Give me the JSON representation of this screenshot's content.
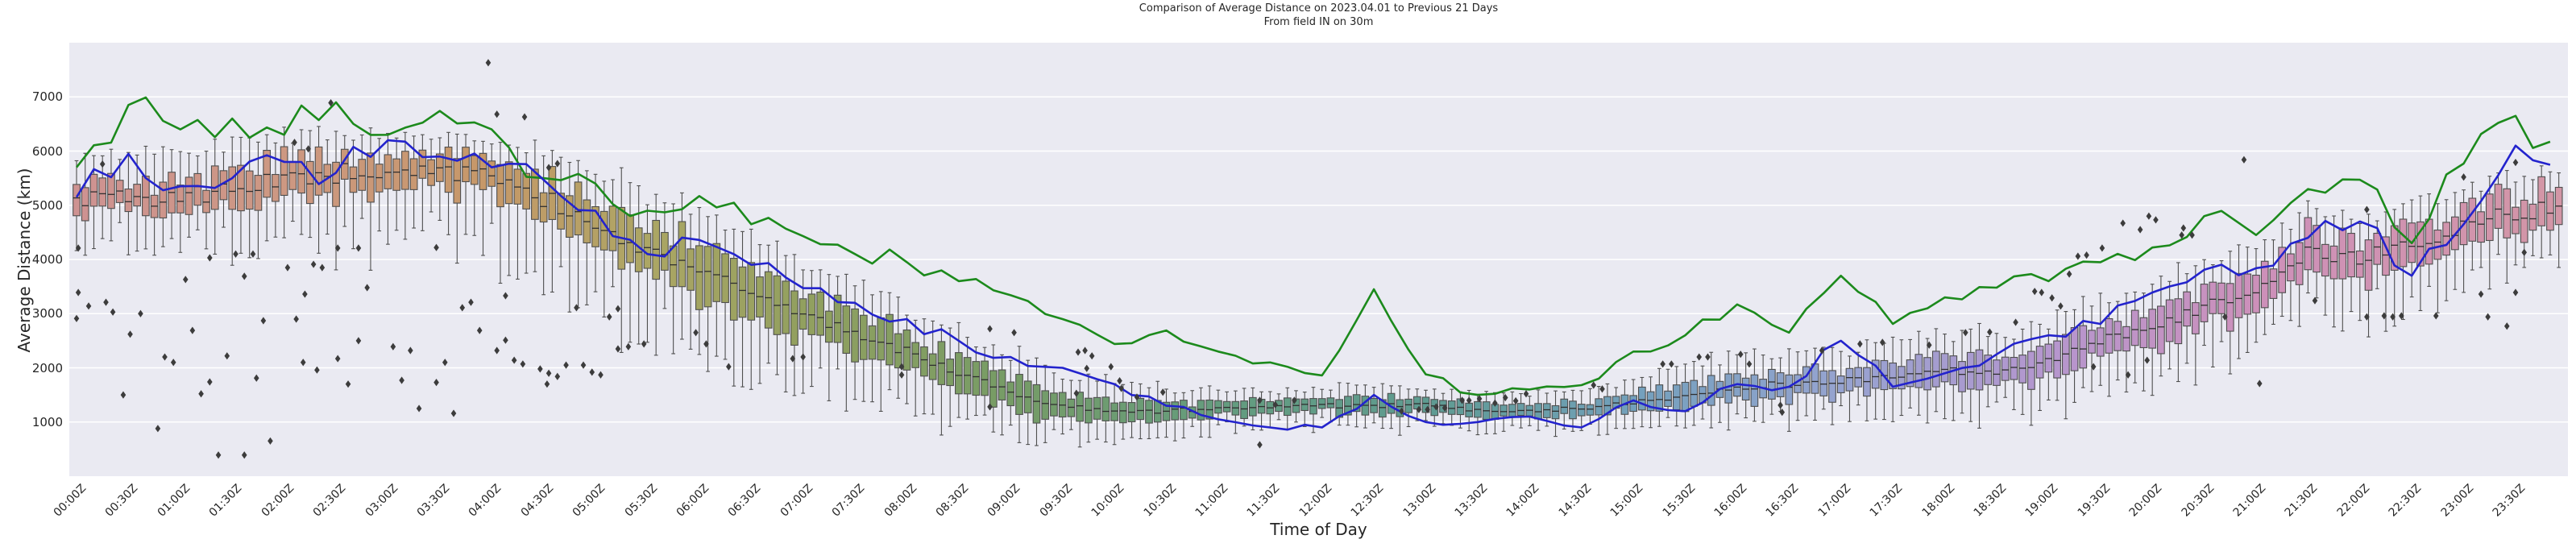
{
  "figure": {
    "title_line1": "Comparison of Average Distance on 2023.04.01 to Previous 21 Days",
    "title_line2": "From field IN on 30m",
    "x_label": "Time of Day",
    "y_label": "Average Distance (km)"
  },
  "style": {
    "axes_background": "#eaeaf2",
    "gridline_color": "#ffffff",
    "green_line_color": "#1c8a1c",
    "blue_line_color": "#2323cd",
    "box_edge_color": "#4f4f4f",
    "median_color": "#303030",
    "whisker_color": "#4f4f4f",
    "outlier_color": "#3c3c3c",
    "text_color": "#262626"
  },
  "chart_data": {
    "type": "box",
    "title": "Comparison of Average Distance on 2023.04.01 to Previous 21 Days",
    "subtitle": "From field IN on 30m",
    "xlabel": "Time of Day",
    "ylabel": "Average Distance (km)",
    "ylim": [
      0,
      8000
    ],
    "y_ticks": [
      1000,
      2000,
      3000,
      4000,
      5000,
      6000,
      7000
    ],
    "grid": "horizontal-only",
    "legend": "none",
    "x_tick_labels": [
      "00:00Z",
      "00:30Z",
      "01:00Z",
      "01:30Z",
      "02:00Z",
      "02:30Z",
      "03:00Z",
      "03:30Z",
      "04:00Z",
      "04:30Z",
      "05:00Z",
      "05:30Z",
      "06:00Z",
      "06:30Z",
      "07:00Z",
      "07:30Z",
      "08:00Z",
      "08:30Z",
      "09:00Z",
      "09:30Z",
      "10:00Z",
      "10:30Z",
      "11:00Z",
      "11:30Z",
      "12:00Z",
      "12:30Z",
      "13:00Z",
      "13:30Z",
      "14:00Z",
      "14:30Z",
      "15:00Z",
      "15:30Z",
      "16:00Z",
      "16:30Z",
      "17:00Z",
      "17:30Z",
      "18:00Z",
      "18:30Z",
      "19:00Z",
      "19:30Z",
      "20:00Z",
      "20:30Z",
      "21:00Z",
      "21:30Z",
      "22:00Z",
      "22:30Z",
      "23:00Z",
      "23:30Z"
    ],
    "box_interval_minutes": 5,
    "anchor_interval_minutes": 30,
    "anchor_last_minute": 1435,
    "series": [
      {
        "name": "green_line",
        "type": "line",
        "color": "#1c8a1c",
        "values": [
          5700,
          6850,
          6400,
          6600,
          6300,
          6900,
          6300,
          6740,
          6400,
          5500,
          5400,
          4900,
          5170,
          4650,
          4430,
          4100,
          3950,
          3600,
          3340,
          2900,
          2440,
          2690,
          2300,
          2100,
          1860,
          3450,
          1880,
          1500,
          1600,
          1680,
          2300,
          2600,
          3170,
          2650,
          3700,
          2810,
          3300,
          3480,
          3600,
          3950,
          4220,
          4800,
          4450,
          5300,
          5470,
          4300,
          5770,
          6650,
          6030
        ]
      },
      {
        "name": "blue_line",
        "type": "line",
        "color": "#2323cd",
        "values": [
          5150,
          5950,
          5350,
          5500,
          5800,
          5600,
          6200,
          5900,
          5700,
          5470,
          4900,
          4100,
          4360,
          3900,
          3470,
          3200,
          2900,
          2500,
          2200,
          2000,
          1700,
          1300,
          1050,
          900,
          900,
          1500,
          1000,
          1000,
          1100,
          900,
          1400,
          1200,
          1700,
          1650,
          2500,
          1650,
          1900,
          2250,
          2600,
          2810,
          3390,
          3810,
          3840,
          4400,
          4700,
          3700,
          4650,
          6100,
          5650
        ]
      }
    ],
    "boxes": {
      "median": [
        5100,
        5150,
        5150,
        5250,
        5450,
        5600,
        5650,
        5660,
        5450,
        5150,
        4600,
        4200,
        3850,
        3400,
        3000,
        2650,
        2300,
        1900,
        1550,
        1280,
        1230,
        1200,
        1250,
        1250,
        1300,
        1300,
        1300,
        1200,
        1200,
        1250,
        1350,
        1500,
        1650,
        1700,
        1750,
        1850,
        1950,
        1900,
        2100,
        2500,
        2700,
        3140,
        3390,
        4130,
        4000,
        4280,
        4580,
        4880,
        4920
      ],
      "iqr_half": [
        300,
        300,
        300,
        320,
        350,
        350,
        330,
        320,
        340,
        380,
        420,
        450,
        450,
        420,
        400,
        380,
        350,
        320,
        280,
        250,
        180,
        150,
        140,
        130,
        140,
        140,
        140,
        130,
        130,
        140,
        160,
        200,
        220,
        220,
        230,
        250,
        280,
        280,
        300,
        320,
        330,
        340,
        350,
        360,
        350,
        350,
        340,
        360,
        350
      ],
      "whisker_low_ext": [
        700,
        800,
        800,
        900,
        1000,
        1100,
        1100,
        1000,
        1200,
        1400,
        1500,
        1400,
        1300,
        1200,
        1100,
        1000,
        900,
        800,
        700,
        500,
        400,
        350,
        300,
        300,
        320,
        320,
        320,
        300,
        300,
        320,
        350,
        400,
        450,
        450,
        500,
        550,
        600,
        650,
        700,
        750,
        800,
        850,
        900,
        950,
        900,
        900,
        850,
        800,
        700
      ],
      "whisker_high_ext": [
        600,
        700,
        650,
        700,
        600,
        500,
        450,
        400,
        500,
        600,
        700,
        700,
        700,
        700,
        650,
        600,
        600,
        550,
        500,
        450,
        350,
        300,
        280,
        260,
        280,
        280,
        280,
        260,
        260,
        280,
        320,
        380,
        420,
        420,
        450,
        480,
        520,
        550,
        600,
        620,
        650,
        600,
        600,
        550,
        500,
        480,
        450,
        420,
        400
      ]
    },
    "box_palette": [
      [
        0,
        206,
        146,
        146
      ],
      [
        120,
        205,
        152,
        130
      ],
      [
        240,
        198,
        152,
        104
      ],
      [
        330,
        172,
        166,
        100
      ],
      [
        420,
        146,
        160,
        95
      ],
      [
        540,
        118,
        156,
        102
      ],
      [
        660,
        100,
        156,
        126
      ],
      [
        780,
        94,
        155,
        145
      ],
      [
        900,
        115,
        160,
        188
      ],
      [
        1020,
        150,
        163,
        208
      ],
      [
        1140,
        181,
        150,
        206
      ],
      [
        1260,
        205,
        144,
        186
      ],
      [
        1435,
        211,
        150,
        166
      ]
    ],
    "outliers": [
      [
        0,
        2910
      ],
      [
        1,
        4210
      ],
      [
        1,
        3390
      ],
      [
        7,
        3140
      ],
      [
        15,
        5760
      ],
      [
        17,
        3210
      ],
      [
        21,
        3030
      ],
      [
        27,
        1500
      ],
      [
        31,
        2620
      ],
      [
        37,
        3000
      ],
      [
        47,
        880
      ],
      [
        51,
        2200
      ],
      [
        56,
        2100
      ],
      [
        63,
        3630
      ],
      [
        67,
        2690
      ],
      [
        72,
        1520
      ],
      [
        77,
        4030
      ],
      [
        77,
        1740
      ],
      [
        82,
        390
      ],
      [
        87,
        2220
      ],
      [
        92,
        4100
      ],
      [
        97,
        3690
      ],
      [
        97,
        390
      ],
      [
        102,
        4100
      ],
      [
        104,
        1810
      ],
      [
        108,
        2870
      ],
      [
        112,
        650
      ],
      [
        122,
        3850
      ],
      [
        126,
        6160
      ],
      [
        127,
        2900
      ],
      [
        131,
        2100
      ],
      [
        132,
        3360
      ],
      [
        134,
        6040
      ],
      [
        137,
        3910
      ],
      [
        139,
        1960
      ],
      [
        142,
        3850
      ],
      [
        147,
        6890
      ],
      [
        151,
        2170
      ],
      [
        151,
        4210
      ],
      [
        157,
        1700
      ],
      [
        163,
        4210
      ],
      [
        163,
        2500
      ],
      [
        168,
        3480
      ],
      [
        183,
        2390
      ],
      [
        188,
        1770
      ],
      [
        193,
        2320
      ],
      [
        198,
        1250
      ],
      [
        208,
        4220
      ],
      [
        208,
        1730
      ],
      [
        213,
        2100
      ],
      [
        218,
        1160
      ],
      [
        223,
        3110
      ],
      [
        228,
        3210
      ],
      [
        233,
        2690
      ],
      [
        238,
        7630
      ],
      [
        243,
        6680
      ],
      [
        243,
        2320
      ],
      [
        248,
        2510
      ],
      [
        248,
        3330
      ],
      [
        253,
        2140
      ],
      [
        258,
        2070
      ],
      [
        259,
        6630
      ],
      [
        268,
        1980
      ],
      [
        272,
        1700
      ],
      [
        273,
        5695
      ],
      [
        278,
        5770
      ],
      [
        273,
        1900
      ],
      [
        278,
        1840
      ],
      [
        283,
        2050
      ],
      [
        289,
        3110
      ],
      [
        293,
        2050
      ],
      [
        298,
        1920
      ],
      [
        303,
        1870
      ],
      [
        308,
        2940
      ],
      [
        313,
        2350
      ],
      [
        313,
        3090
      ],
      [
        319,
        2390
      ],
      [
        328,
        2440
      ],
      [
        358,
        2650
      ],
      [
        364,
        2440
      ],
      [
        377,
        2020
      ],
      [
        414,
        2170
      ],
      [
        420,
        2200
      ],
      [
        477,
        2020
      ],
      [
        477,
        1870
      ],
      [
        528,
        2720
      ],
      [
        528,
        1280
      ],
      [
        542,
        2650
      ],
      [
        578,
        1530
      ],
      [
        579,
        2290
      ],
      [
        583,
        2320
      ],
      [
        584,
        1990
      ],
      [
        587,
        2220
      ],
      [
        598,
        2020
      ],
      [
        603,
        1760
      ],
      [
        604,
        1620
      ],
      [
        613,
        1460
      ],
      [
        628,
        1550
      ],
      [
        684,
        1400
      ],
      [
        684,
        580
      ],
      [
        693,
        1320
      ],
      [
        704,
        1400
      ],
      [
        766,
        1200
      ],
      [
        776,
        1230
      ],
      [
        781,
        1230
      ],
      [
        786,
        1280
      ],
      [
        791,
        1260
      ],
      [
        801,
        1400
      ],
      [
        805,
        1400
      ],
      [
        811,
        1430
      ],
      [
        820,
        1350
      ],
      [
        826,
        1450
      ],
      [
        832,
        1390
      ],
      [
        838,
        1520
      ],
      [
        877,
        1680
      ],
      [
        882,
        1610
      ],
      [
        917,
        2070
      ],
      [
        922,
        2070
      ],
      [
        938,
        2200
      ],
      [
        943,
        2200
      ],
      [
        962,
        2250
      ],
      [
        967,
        2070
      ],
      [
        985,
        1310
      ],
      [
        986,
        1180
      ],
      [
        1009,
        2320
      ],
      [
        1031,
        2440
      ],
      [
        1044,
        2470
      ],
      [
        1071,
        2420
      ],
      [
        1092,
        2650
      ],
      [
        1106,
        2660
      ],
      [
        1121,
        2840
      ],
      [
        1132,
        3410
      ],
      [
        1136,
        3390
      ],
      [
        1142,
        3290
      ],
      [
        1147,
        3140
      ],
      [
        1152,
        3730
      ],
      [
        1157,
        4060
      ],
      [
        1162,
        4080
      ],
      [
        1166,
        2020
      ],
      [
        1171,
        4210
      ],
      [
        1183,
        4670
      ],
      [
        1186,
        1870
      ],
      [
        1193,
        4550
      ],
      [
        1197,
        2140
      ],
      [
        1198,
        4800
      ],
      [
        1202,
        4730
      ],
      [
        1217,
        4450
      ],
      [
        1218,
        4580
      ],
      [
        1223,
        4450
      ],
      [
        1242,
        2940
      ],
      [
        1253,
        5840
      ],
      [
        1262,
        1710
      ],
      [
        1294,
        3240
      ],
      [
        1324,
        4920
      ],
      [
        1324,
        2940
      ],
      [
        1334,
        2960
      ],
      [
        1339,
        2940
      ],
      [
        1344,
        2960
      ],
      [
        1364,
        2960
      ],
      [
        1380,
        5520
      ],
      [
        1390,
        3360
      ],
      [
        1394,
        2940
      ],
      [
        1405,
        2770
      ],
      [
        1410,
        3390
      ],
      [
        1410,
        5790
      ],
      [
        1415,
        4130
      ]
    ]
  }
}
